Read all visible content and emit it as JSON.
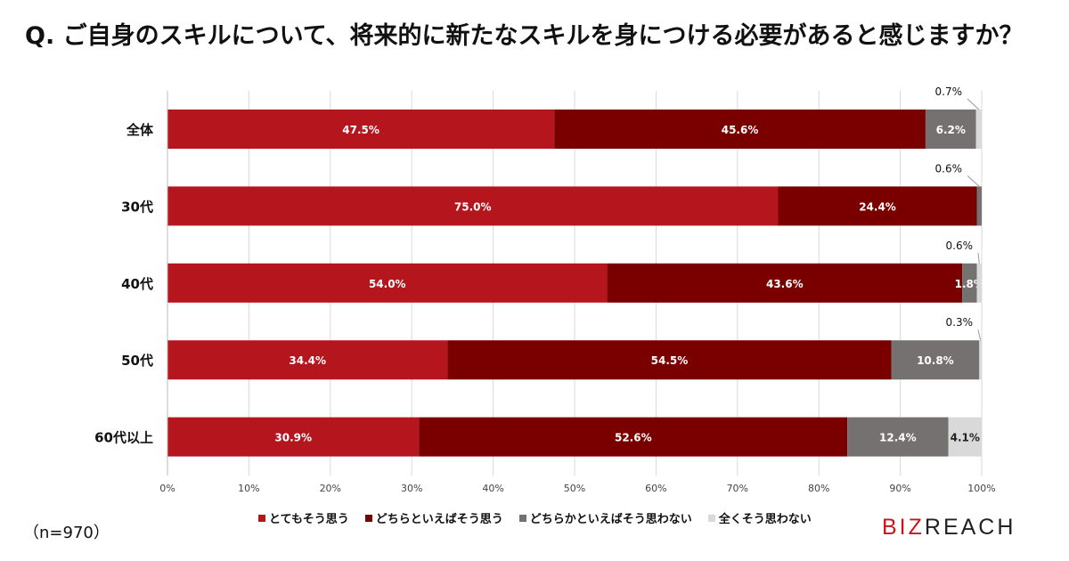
{
  "title": "Q. ご自身のスキルについて、将来的に新たなスキルを身につける必要があると感じますか？",
  "note": "（n=970）",
  "logo": {
    "red": "BIZ",
    "dark": "REACH"
  },
  "chart_data": {
    "type": "bar",
    "orientation": "horizontal-stacked-100",
    "categories": [
      "全体",
      "30代",
      "40代",
      "50代",
      "60代以上"
    ],
    "series": [
      {
        "name": "とてもそう思う",
        "color": "#b5161e",
        "values": [
          47.5,
          75.0,
          54.0,
          34.4,
          30.9
        ]
      },
      {
        "name": "どちらといえばそう思う",
        "color": "#7a0000",
        "values": [
          45.6,
          24.4,
          43.6,
          54.5,
          52.6
        ]
      },
      {
        "name": "どちらかといえばそう思わない",
        "color": "#767171",
        "values": [
          6.2,
          0.6,
          1.8,
          10.8,
          12.4
        ]
      },
      {
        "name": "全くそう思わない",
        "color": "#d9d9d9",
        "values": [
          0.7,
          0,
          0.6,
          0.3,
          4.1
        ]
      }
    ],
    "xlim": [
      0,
      100
    ],
    "xticks": [
      "0%",
      "10%",
      "20%",
      "30%",
      "40%",
      "50%",
      "60%",
      "70%",
      "80%",
      "90%",
      "100%"
    ],
    "grid": true,
    "legend": "bottom"
  }
}
